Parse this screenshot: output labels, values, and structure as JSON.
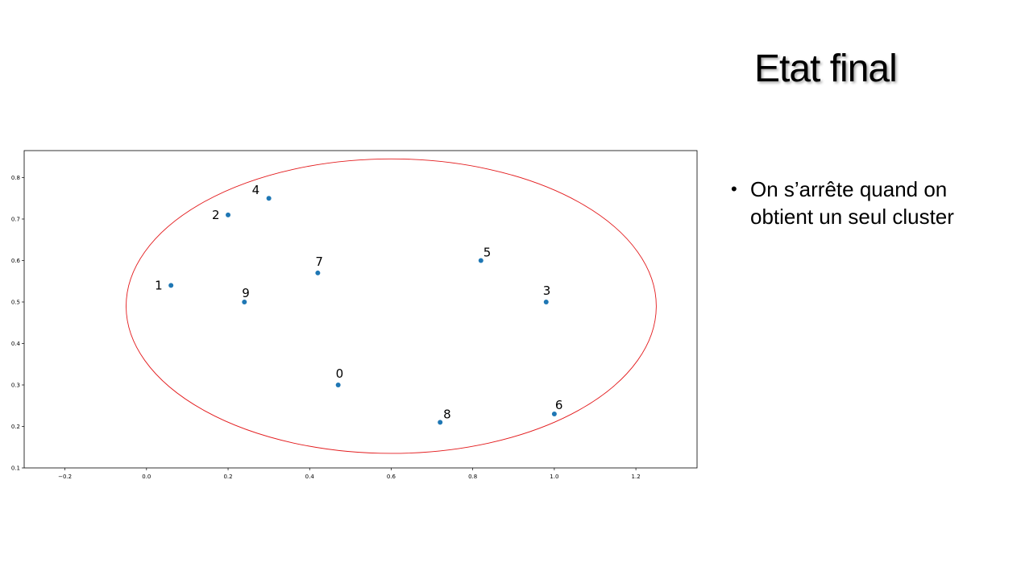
{
  "slide": {
    "title": "Etat final",
    "bullets": [
      "On s’arrête quand on obtient un seul cluster"
    ]
  },
  "chart_data": {
    "type": "scatter",
    "title": "",
    "xlabel": "",
    "ylabel": "",
    "xlim": [
      -0.3,
      1.35
    ],
    "ylim": [
      0.1,
      0.865
    ],
    "x_ticks": [
      -0.2,
      0.0,
      0.2,
      0.4,
      0.6,
      0.8,
      1.0,
      1.2
    ],
    "y_ticks": [
      0.1,
      0.2,
      0.3,
      0.4,
      0.5,
      0.6,
      0.7,
      0.8
    ],
    "x_tick_labels": [
      "−0.2",
      "0.0",
      "0.2",
      "0.4",
      "0.6",
      "0.8",
      "1.0",
      "1.2"
    ],
    "y_tick_labels": [
      "0.1",
      "0.2",
      "0.3",
      "0.4",
      "0.5",
      "0.6",
      "0.7",
      "0.8"
    ],
    "grid": false,
    "point_color": "#1f77b4",
    "points": [
      {
        "label": "0",
        "x": 0.47,
        "y": 0.3
      },
      {
        "label": "1",
        "x": 0.06,
        "y": 0.54
      },
      {
        "label": "2",
        "x": 0.2,
        "y": 0.71
      },
      {
        "label": "3",
        "x": 0.98,
        "y": 0.5
      },
      {
        "label": "4",
        "x": 0.3,
        "y": 0.75
      },
      {
        "label": "5",
        "x": 0.82,
        "y": 0.6
      },
      {
        "label": "6",
        "x": 1.0,
        "y": 0.23
      },
      {
        "label": "7",
        "x": 0.42,
        "y": 0.57
      },
      {
        "label": "8",
        "x": 0.72,
        "y": 0.21
      },
      {
        "label": "9",
        "x": 0.24,
        "y": 0.5
      }
    ],
    "cluster_ellipse": {
      "center_x": 0.6,
      "center_y": 0.49,
      "radius_x": 0.65,
      "radius_y": 0.355,
      "color": "#e31a1c"
    }
  }
}
